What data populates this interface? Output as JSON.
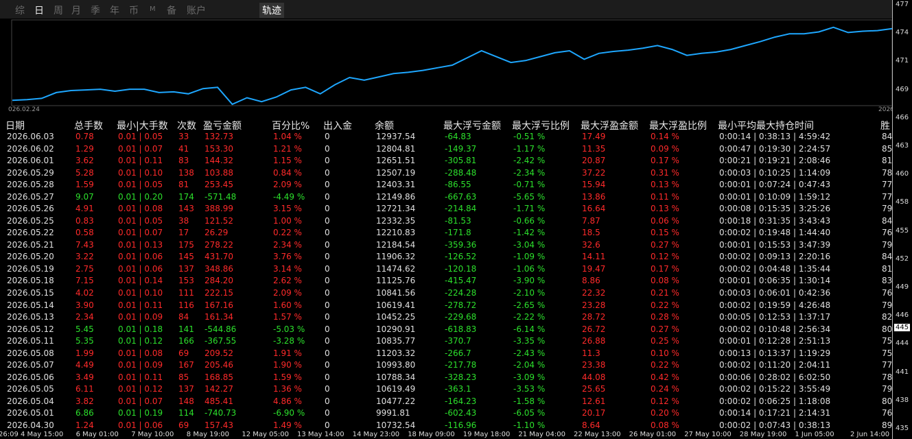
{
  "tabs": [
    "综",
    "日",
    "周",
    "月",
    "季",
    "年",
    "币",
    "M",
    "备",
    "账户"
  ],
  "track_tab": "轨迹",
  "chart_data": {
    "type": "line",
    "x_start_label": "026.02.24",
    "x_end_label": "2026",
    "color": "#1ea7ff",
    "values": [
      6,
      7,
      9,
      18,
      21,
      22,
      23,
      20,
      23,
      23,
      18,
      19,
      16,
      24,
      26,
      0,
      10,
      4,
      11,
      22,
      26,
      16,
      30,
      41,
      37,
      42,
      47,
      49,
      52,
      56,
      60,
      71,
      82,
      73,
      64,
      67,
      73,
      79,
      82,
      69,
      78,
      81,
      83,
      86,
      90,
      84,
      75,
      78,
      80,
      84,
      90,
      96,
      103,
      108,
      108,
      111,
      118,
      110,
      112,
      113,
      116
    ],
    "ylim": [
      0,
      122
    ]
  },
  "table": {
    "columns": [
      "日期",
      "总手数",
      "最小|大手数",
      "次数",
      "盈亏金额",
      "百分比%",
      "出入金",
      "余额",
      "最大浮亏金额",
      "最大浮亏比例",
      "最大浮盈金额",
      "最大浮盈比例",
      "最小平均最大持仓时间",
      "胜"
    ],
    "rows": [
      [
        "2026.06.03",
        "0.78",
        "0.01 | 0.05",
        "33",
        "132.73",
        "1.04 %",
        "0",
        "12937.54",
        "-64.83",
        "-0.51 %",
        "17.49",
        "0.14 %",
        "0:00:14 | 0:38:13 | 4:59:42",
        "84"
      ],
      [
        "2026.06.02",
        "1.29",
        "0.01 | 0.07",
        "41",
        "153.30",
        "1.21 %",
        "0",
        "12804.81",
        "-149.37",
        "-1.17 %",
        "11.35",
        "0.09 %",
        "0:00:47 | 0:19:30 | 2:24:57",
        "85"
      ],
      [
        "2026.06.01",
        "3.62",
        "0.01 | 0.11",
        "83",
        "144.32",
        "1.15 %",
        "0",
        "12651.51",
        "-305.81",
        "-2.42 %",
        "20.87",
        "0.17 %",
        "0:00:21 | 0:19:21 | 2:08:46",
        "81"
      ],
      [
        "2026.05.29",
        "5.28",
        "0.01 | 0.10",
        "138",
        "103.88",
        "0.84 %",
        "0",
        "12507.19",
        "-288.48",
        "-2.34 %",
        "37.22",
        "0.31 %",
        "0:00:03 | 0:10:25 | 1:14:09",
        "78"
      ],
      [
        "2026.05.28",
        "1.59",
        "0.01 | 0.05",
        "81",
        "253.45",
        "2.09 %",
        "0",
        "12403.31",
        "-86.55",
        "-0.71 %",
        "15.94",
        "0.13 %",
        "0:00:01 | 0:07:24 | 0:47:43",
        "77"
      ],
      [
        "2026.05.27",
        "9.07",
        "0.01 | 0.20",
        "174",
        "-571.48",
        "-4.49 %",
        "0",
        "12149.86",
        "-667.63",
        "-5.65 %",
        "13.86",
        "0.11 %",
        "0:00:01 | 0:10:09 | 1:59:12",
        "77"
      ],
      [
        "2026.05.26",
        "4.91",
        "0.01 | 0.08",
        "143",
        "388.99",
        "3.15 %",
        "0",
        "12721.34",
        "-214.84",
        "-1.71 %",
        "16.64",
        "0.13 %",
        "0:00:08 | 0:15:35 | 3:25:26",
        "79"
      ],
      [
        "2026.05.25",
        "0.83",
        "0.01 | 0.05",
        "38",
        "121.52",
        "1.00 %",
        "0",
        "12332.35",
        "-81.53",
        "-0.66 %",
        "7.87",
        "0.06 %",
        "0:00:18 | 0:31:35 | 3:43:43",
        "84"
      ],
      [
        "2026.05.22",
        "0.58",
        "0.01 | 0.07",
        "17",
        "26.29",
        "0.22 %",
        "0",
        "12210.83",
        "-171.8",
        "-1.42 %",
        "18.5",
        "0.15 %",
        "0:00:02 | 0:19:48 | 1:44:40",
        "76"
      ],
      [
        "2026.05.21",
        "7.43",
        "0.01 | 0.13",
        "175",
        "278.22",
        "2.34 %",
        "0",
        "12184.54",
        "-359.36",
        "-3.04 %",
        "32.6",
        "0.27 %",
        "0:00:01 | 0:15:53 | 3:47:39",
        "79"
      ],
      [
        "2026.05.20",
        "3.22",
        "0.01 | 0.06",
        "145",
        "431.70",
        "3.76 %",
        "0",
        "11906.32",
        "-126.52",
        "-1.09 %",
        "14.11",
        "0.12 %",
        "0:00:02 | 0:09:13 | 2:20:16",
        "84"
      ],
      [
        "2026.05.19",
        "2.75",
        "0.01 | 0.06",
        "137",
        "348.86",
        "3.14 %",
        "0",
        "11474.62",
        "-120.18",
        "-1.06 %",
        "19.47",
        "0.17 %",
        "0:00:02 | 0:04:48 | 1:35:44",
        "81"
      ],
      [
        "2026.05.18",
        "7.15",
        "0.01 | 0.14",
        "153",
        "284.20",
        "2.62 %",
        "0",
        "11125.76",
        "-415.47",
        "-3.90 %",
        "8.86",
        "0.08 %",
        "0:00:01 | 0:06:35 | 1:30:14",
        "83"
      ],
      [
        "2026.05.15",
        "4.02",
        "0.01 | 0.10",
        "111",
        "222.15",
        "2.09 %",
        "0",
        "10841.56",
        "-224.28",
        "-2.10 %",
        "22.32",
        "0.21 %",
        "0:00:03 | 0:06:01 | 0:42:36",
        "76"
      ],
      [
        "2026.05.14",
        "3.90",
        "0.01 | 0.11",
        "116",
        "167.16",
        "1.60 %",
        "0",
        "10619.41",
        "-278.72",
        "-2.65 %",
        "23.28",
        "0.22 %",
        "0:00:02 | 0:19:59 | 4:26:48",
        "79"
      ],
      [
        "2026.05.13",
        "2.34",
        "0.01 | 0.09",
        "84",
        "161.34",
        "1.57 %",
        "0",
        "10452.25",
        "-229.68",
        "-2.22 %",
        "28.72",
        "0.28 %",
        "0:00:05 | 0:12:53 | 1:37:17",
        "82"
      ],
      [
        "2026.05.12",
        "5.45",
        "0.01 | 0.18",
        "141",
        "-544.86",
        "-5.03 %",
        "0",
        "10290.91",
        "-618.83",
        "-6.14 %",
        "26.72",
        "0.27 %",
        "0:00:02 | 0:10:48 | 2:56:34",
        "80"
      ],
      [
        "2026.05.11",
        "5.35",
        "0.01 | 0.12",
        "166",
        "-367.55",
        "-3.28 %",
        "0",
        "10835.77",
        "-370.7",
        "-3.35 %",
        "26.88",
        "0.25 %",
        "0:00:01 | 0:12:28 | 2:51:13",
        "75"
      ],
      [
        "2026.05.08",
        "1.99",
        "0.01 | 0.08",
        "69",
        "209.52",
        "1.91 %",
        "0",
        "11203.32",
        "-266.7",
        "-2.43 %",
        "11.3",
        "0.10 %",
        "0:00:13 | 0:13:37 | 1:19:29",
        "75"
      ],
      [
        "2026.05.07",
        "4.49",
        "0.01 | 0.09",
        "167",
        "205.46",
        "1.90 %",
        "0",
        "10993.80",
        "-217.78",
        "-2.04 %",
        "23.38",
        "0.22 %",
        "0:00:02 | 0:11:20 | 2:04:11",
        "77"
      ],
      [
        "2026.05.06",
        "3.49",
        "0.01 | 0.11",
        "85",
        "168.85",
        "1.59 %",
        "0",
        "10788.34",
        "-328.23",
        "-3.09 %",
        "44.08",
        "0.42 %",
        "0:00:06 | 0:28:02 | 6:02:50",
        "78"
      ],
      [
        "2026.05.05",
        "6.11",
        "0.01 | 0.12",
        "137",
        "142.27",
        "1.36 %",
        "0",
        "10619.49",
        "-363.1",
        "-3.53 %",
        "25.65",
        "0.24 %",
        "0:00:02 | 0:15:22 | 3:55:49",
        "79"
      ],
      [
        "2026.05.04",
        "3.82",
        "0.01 | 0.07",
        "148",
        "485.41",
        "4.86 %",
        "0",
        "10477.22",
        "-164.23",
        "-1.58 %",
        "12.61",
        "0.12 %",
        "0:00:02 | 0:06:25 | 1:18:08",
        "80"
      ],
      [
        "2026.05.01",
        "6.86",
        "0.01 | 0.19",
        "114",
        "-740.73",
        "-6.90 %",
        "0",
        "9991.81",
        "-602.43",
        "-6.05 %",
        "20.17",
        "0.20 %",
        "0:00:14 | 0:17:21 | 2:14:31",
        "76"
      ],
      [
        "2026.04.30",
        "1.24",
        "0.01 | 0.06",
        "69",
        "157.43",
        "1.49 %",
        "0",
        "10732.54",
        "-116.96",
        "-1.10 %",
        "8.64",
        "0.08 %",
        "0:00:02 | 0:07:43 | 0:38:13",
        "89"
      ]
    ]
  },
  "price_labels": [
    "477",
    "474",
    "471",
    "469",
    "466",
    "463",
    "460",
    "458",
    "455",
    "452",
    "449",
    "446",
    "444",
    "441",
    "438",
    "435"
  ],
  "current_price": "445",
  "time_labels": [
    "26:09",
    "4 May 15:00",
    "6 May 01:00",
    "7 May 10:00",
    "8 May 19:00",
    "12 May 05:00",
    "13 May 14:00",
    "14 May 23:00",
    "18 May 09:00",
    "19 May 18:00",
    "21 May 04:00",
    "22 May 13:00",
    "26 May 01:00",
    "27 May 10:00",
    "28 May 19:00",
    "1 Jun 05:00",
    "2 Jun 14:00"
  ]
}
